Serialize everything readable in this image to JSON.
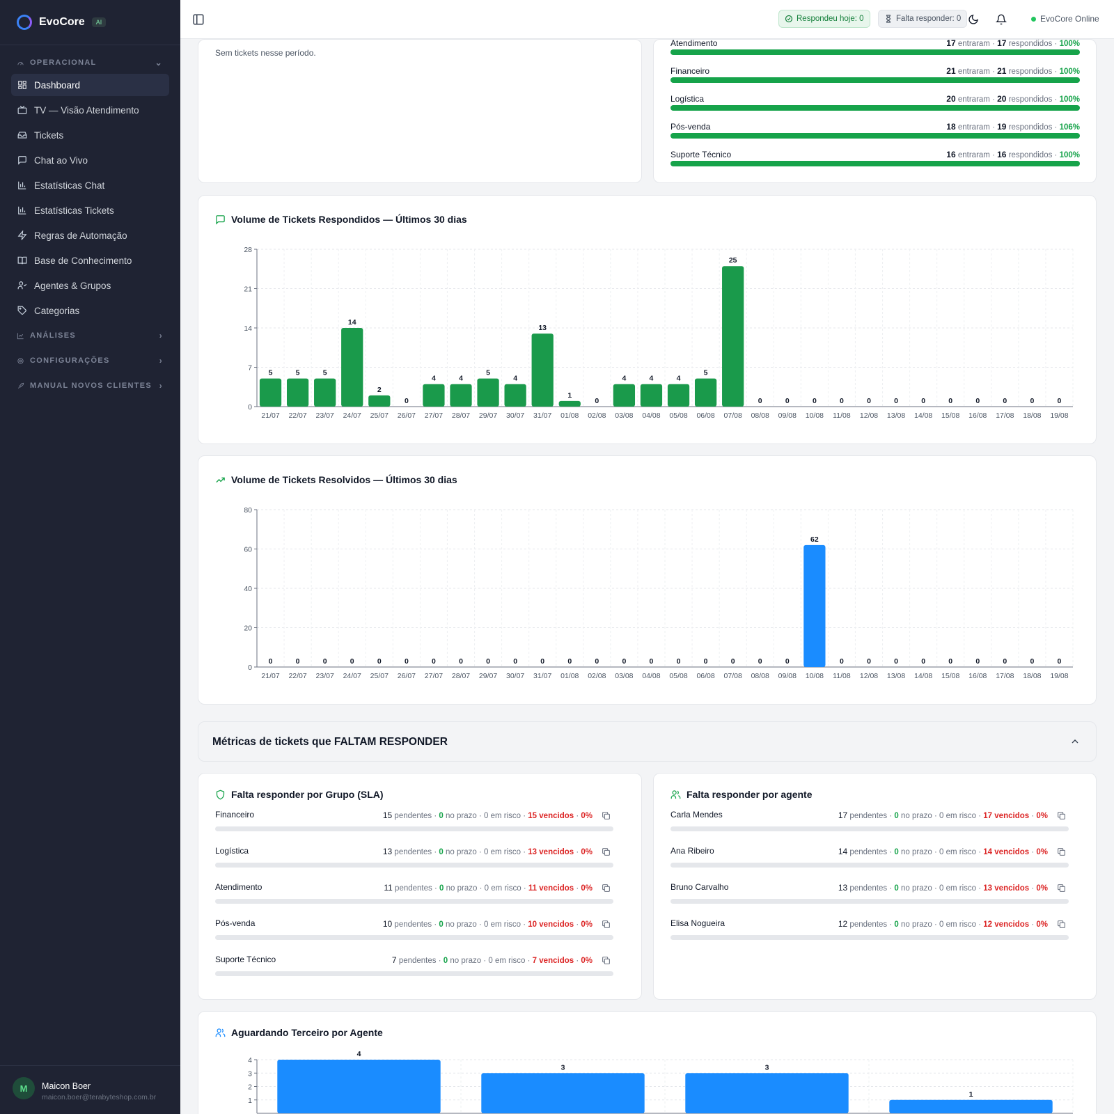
{
  "app": {
    "name": "EvoCore",
    "badge": "AI"
  },
  "sidebar": {
    "sections": [
      {
        "label": "OPERACIONAL",
        "expanded": true
      },
      {
        "label": "ANÁLISES",
        "expanded": false
      },
      {
        "label": "CONFIGURAÇÕES",
        "expanded": false
      },
      {
        "label": "MANUAL NOVOS CLIENTES",
        "expanded": false
      }
    ],
    "items": [
      {
        "label": "Dashboard",
        "icon": "dashboard-icon",
        "active": true
      },
      {
        "label": "TV — Visão Atendimento",
        "icon": "tv-icon"
      },
      {
        "label": "Tickets",
        "icon": "inbox-icon"
      },
      {
        "label": "Chat ao Vivo",
        "icon": "chat-icon"
      },
      {
        "label": "Estatísticas Chat",
        "icon": "bar-chart-icon"
      },
      {
        "label": "Estatísticas Tickets",
        "icon": "bar-chart-icon"
      },
      {
        "label": "Regras de Automação",
        "icon": "lightning-icon"
      },
      {
        "label": "Base de Conhecimento",
        "icon": "book-icon"
      },
      {
        "label": "Agentes & Grupos",
        "icon": "users-icon"
      },
      {
        "label": "Categorias",
        "icon": "tag-icon"
      }
    ],
    "user": {
      "initial": "M",
      "name": "Maicon Boer",
      "email": "maicon.boer@terabyteshop.com.br"
    }
  },
  "topbar": {
    "answered_today": "Respondeu hoje: 0",
    "pending": "Falta responder: 0",
    "status": "EvoCore Online"
  },
  "empty_card": {
    "text": "Sem tickets nesse período."
  },
  "groups_card": {
    "rows": [
      {
        "name": "Atendimento",
        "in": 17,
        "answered": 17,
        "pct": "100%",
        "fill": 1.0
      },
      {
        "name": "Financeiro",
        "in": 21,
        "answered": 21,
        "pct": "100%",
        "fill": 1.0
      },
      {
        "name": "Logística",
        "in": 20,
        "answered": 20,
        "pct": "100%",
        "fill": 1.0
      },
      {
        "name": "Pós-venda",
        "in": 18,
        "answered": 19,
        "pct": "106%",
        "fill": 1.0
      },
      {
        "name": "Suporte Técnico",
        "in": 16,
        "answered": 16,
        "pct": "100%",
        "fill": 1.0
      }
    ],
    "in_label": "entraram",
    "answered_label": "respondidos"
  },
  "chart_data": [
    {
      "type": "bar",
      "title": "Volume de Tickets Respondidos — Últimos 30 dias",
      "categories": [
        "21/07",
        "22/07",
        "23/07",
        "24/07",
        "25/07",
        "26/07",
        "27/07",
        "28/07",
        "29/07",
        "30/07",
        "31/07",
        "01/08",
        "02/08",
        "03/08",
        "04/08",
        "05/08",
        "06/08",
        "07/08",
        "08/08",
        "09/08",
        "10/08",
        "11/08",
        "12/08",
        "13/08",
        "14/08",
        "15/08",
        "16/08",
        "17/08",
        "18/08",
        "19/08"
      ],
      "values": [
        5,
        5,
        5,
        14,
        2,
        0,
        4,
        4,
        5,
        4,
        13,
        1,
        0,
        4,
        4,
        4,
        5,
        25,
        0,
        0,
        0,
        0,
        0,
        0,
        0,
        0,
        0,
        0,
        0,
        0
      ],
      "ylim": [
        0,
        28
      ],
      "yticks": [
        0,
        7,
        14,
        21,
        28
      ],
      "color": "#1a9a4b",
      "grid": true
    },
    {
      "type": "bar",
      "title": "Volume de Tickets Resolvidos — Últimos 30 dias",
      "categories": [
        "21/07",
        "22/07",
        "23/07",
        "24/07",
        "25/07",
        "26/07",
        "27/07",
        "28/07",
        "29/07",
        "30/07",
        "31/07",
        "01/08",
        "02/08",
        "03/08",
        "04/08",
        "05/08",
        "06/08",
        "07/08",
        "08/08",
        "09/08",
        "10/08",
        "11/08",
        "12/08",
        "13/08",
        "14/08",
        "15/08",
        "16/08",
        "17/08",
        "18/08",
        "19/08"
      ],
      "values": [
        0,
        0,
        0,
        0,
        0,
        0,
        0,
        0,
        0,
        0,
        0,
        0,
        0,
        0,
        0,
        0,
        0,
        0,
        0,
        0,
        62,
        0,
        0,
        0,
        0,
        0,
        0,
        0,
        0,
        0
      ],
      "ylim": [
        0,
        80
      ],
      "yticks": [
        0,
        20,
        40,
        60,
        80
      ],
      "color": "#1a8cff",
      "grid": true
    },
    {
      "type": "bar",
      "title": "Aguardando Terceiro por Agente",
      "values": [
        4,
        3,
        3,
        1
      ],
      "ylim": [
        0,
        4
      ],
      "yticks": [
        1,
        2,
        3,
        4
      ],
      "color": "#1a8cff",
      "grid": true
    }
  ],
  "pending_section": {
    "title": "Métricas de tickets que FALTAM RESPONDER"
  },
  "pending_by_group": {
    "title": "Falta responder por Grupo (SLA)",
    "rows": [
      {
        "name": "Financeiro",
        "pending": 15,
        "on_time": 0,
        "at_risk": 0,
        "overdue": 15,
        "pct": "0%"
      },
      {
        "name": "Logística",
        "pending": 13,
        "on_time": 0,
        "at_risk": 0,
        "overdue": 13,
        "pct": "0%"
      },
      {
        "name": "Atendimento",
        "pending": 11,
        "on_time": 0,
        "at_risk": 0,
        "overdue": 11,
        "pct": "0%"
      },
      {
        "name": "Pós-venda",
        "pending": 10,
        "on_time": 0,
        "at_risk": 0,
        "overdue": 10,
        "pct": "0%"
      },
      {
        "name": "Suporte Técnico",
        "pending": 7,
        "on_time": 0,
        "at_risk": 0,
        "overdue": 7,
        "pct": "0%"
      }
    ]
  },
  "pending_by_agent": {
    "title": "Falta responder por agente",
    "rows": [
      {
        "name": "Carla Mendes",
        "pending": 17,
        "on_time": 0,
        "at_risk": 0,
        "overdue": 17,
        "pct": "0%"
      },
      {
        "name": "Ana Ribeiro",
        "pending": 14,
        "on_time": 0,
        "at_risk": 0,
        "overdue": 14,
        "pct": "0%"
      },
      {
        "name": "Bruno Carvalho",
        "pending": 13,
        "on_time": 0,
        "at_risk": 0,
        "overdue": 13,
        "pct": "0%"
      },
      {
        "name": "Elisa Nogueira",
        "pending": 12,
        "on_time": 0,
        "at_risk": 0,
        "overdue": 12,
        "pct": "0%"
      }
    ]
  },
  "labels": {
    "pending": "pendentes",
    "on_time": "no prazo",
    "at_risk": "em risco",
    "overdue": "vencidos"
  }
}
